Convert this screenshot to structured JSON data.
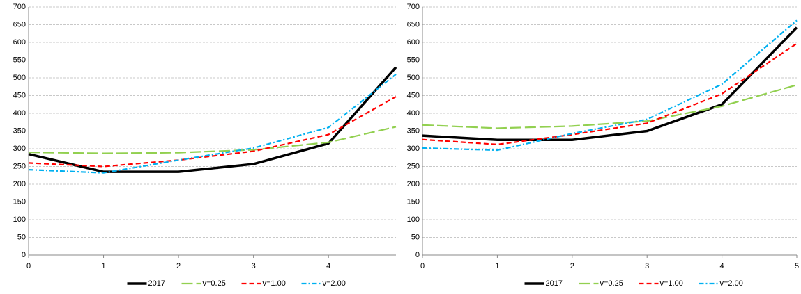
{
  "chart_data": [
    {
      "type": "line",
      "x": [
        0,
        1,
        2,
        3,
        4,
        4.9
      ],
      "xlim": [
        0,
        4.9
      ],
      "xticks": [
        0,
        1,
        2,
        3,
        4
      ],
      "ylim": [
        0,
        700
      ],
      "yticks": [
        0,
        50,
        100,
        150,
        200,
        250,
        300,
        350,
        400,
        450,
        500,
        550,
        600,
        650,
        700
      ],
      "grid": true,
      "series": [
        {
          "name": "2017",
          "color": "#000000",
          "values": [
            285,
            235,
            235,
            257,
            315,
            530
          ]
        },
        {
          "name": "v=0.25",
          "color": "#92d050",
          "values": [
            290,
            287,
            289,
            297,
            318,
            362
          ]
        },
        {
          "name": "v=1.00",
          "color": "#ff0000",
          "values": [
            260,
            250,
            268,
            293,
            340,
            447
          ]
        },
        {
          "name": "v=2.00",
          "color": "#00b0f0",
          "values": [
            241,
            232,
            268,
            302,
            360,
            510
          ]
        }
      ]
    },
    {
      "type": "line",
      "x": [
        0,
        1,
        2,
        3,
        4,
        5
      ],
      "xlim": [
        0,
        5
      ],
      "xticks": [
        0,
        1,
        2,
        3,
        4,
        5
      ],
      "ylim": [
        0,
        700
      ],
      "yticks": [
        0,
        50,
        100,
        150,
        200,
        250,
        300,
        350,
        400,
        450,
        500,
        550,
        600,
        650,
        700
      ],
      "grid": true,
      "series": [
        {
          "name": "2017",
          "color": "#000000",
          "values": [
            337,
            325,
            325,
            350,
            425,
            642
          ]
        },
        {
          "name": "v=0.25",
          "color": "#92d050",
          "values": [
            367,
            358,
            364,
            378,
            420,
            480
          ]
        },
        {
          "name": "v=1.00",
          "color": "#ff0000",
          "values": [
            326,
            312,
            340,
            372,
            455,
            597
          ]
        },
        {
          "name": "v=2.00",
          "color": "#00b0f0",
          "values": [
            302,
            296,
            343,
            383,
            482,
            662
          ]
        }
      ]
    }
  ]
}
